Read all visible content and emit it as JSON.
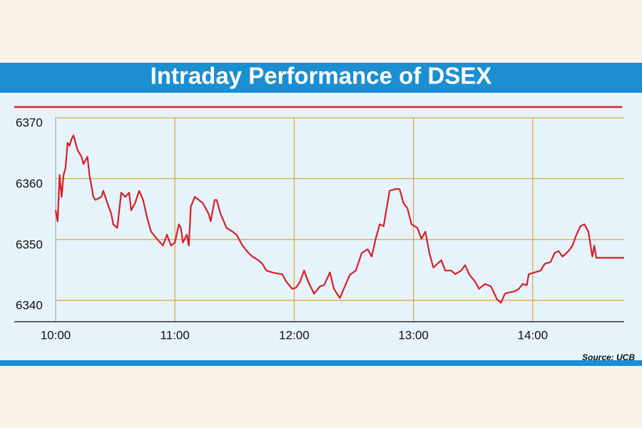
{
  "chart_data": {
    "type": "line",
    "title": "Intraday Performance of DSEX",
    "source": "Source: UCB",
    "x": [
      "10:00",
      "10:01",
      "10:02",
      "10:03",
      "10:04",
      "10:05",
      "10:06",
      "10:07",
      "10:08",
      "10:09",
      "10:11",
      "10:13",
      "10:14",
      "10:16",
      "10:17",
      "10:19",
      "10:20",
      "10:23",
      "10:24",
      "10:26",
      "10:28",
      "10:29",
      "10:31",
      "10:33",
      "10:35",
      "10:37",
      "10:38",
      "10:40",
      "10:42",
      "10:44",
      "10:46",
      "10:48",
      "10:51",
      "10:54",
      "10:56",
      "10:58",
      "11:00",
      "11:02",
      "11:03",
      "11:04",
      "11:06",
      "11:07",
      "11:08",
      "11:10",
      "11:12",
      "11:14",
      "11:17",
      "11:18",
      "11:20",
      "11:21",
      "11:23",
      "11:26",
      "11:29",
      "11:31",
      "11:34",
      "11:37",
      "11:39",
      "11:42",
      "11:44",
      "11:46",
      "11:50",
      "11:54",
      "11:56",
      "11:59",
      "12:01",
      "12:03",
      "12:05",
      "12:07",
      "12:10",
      "12:13",
      "12:15",
      "12:18",
      "12:20",
      "12:23",
      "12:26",
      "12:28",
      "12:31",
      "12:34",
      "12:37",
      "12:39",
      "12:41",
      "12:43",
      "12:45",
      "12:48",
      "12:51",
      "12:53",
      "12:55",
      "12:57",
      "12:59",
      "13:02",
      "13:04",
      "13:06",
      "13:08",
      "13:10",
      "13:12",
      "13:14",
      "13:16",
      "13:19",
      "13:21",
      "13:24",
      "13:26",
      "13:28",
      "13:31",
      "13:33",
      "13:36",
      "13:39",
      "13:42",
      "13:44",
      "13:46",
      "13:48",
      "13:51",
      "13:53",
      "13:55",
      "13:57",
      "13:58",
      "14:01",
      "14:04",
      "14:06",
      "14:09",
      "14:11",
      "14:13",
      "14:15",
      "14:18",
      "14:20",
      "14:22",
      "14:24",
      "14:26",
      "14:28",
      "14:30",
      "14:31",
      "14:32",
      "14:46"
    ],
    "series": [
      {
        "name": "DSEX",
        "color": "#d81f26",
        "values": [
          6354.8,
          6353,
          6360.6,
          6357,
          6360.6,
          6361.8,
          6365.9,
          6365.4,
          6366.5,
          6367.1,
          6364.7,
          6363.6,
          6362.4,
          6363.6,
          6360.6,
          6357,
          6356.5,
          6357,
          6358,
          6356,
          6354.2,
          6352.5,
          6351.9,
          6357.7,
          6357,
          6357.7,
          6354.8,
          6356,
          6358,
          6356.5,
          6353.6,
          6351.3,
          6350.1,
          6349,
          6350.8,
          6349,
          6349.5,
          6352.5,
          6351.9,
          6349.5,
          6350.8,
          6349,
          6355.4,
          6357,
          6356.5,
          6356,
          6354.2,
          6353,
          6356.5,
          6356.5,
          6354.2,
          6351.9,
          6351.3,
          6350.8,
          6349,
          6347.8,
          6347.2,
          6346.6,
          6346,
          6344.9,
          6344.5,
          6344.3,
          6343.1,
          6341.9,
          6342.1,
          6343.1,
          6344.9,
          6343.1,
          6341.1,
          6342.3,
          6342.5,
          6344.6,
          6341.9,
          6340.4,
          6342.7,
          6344.2,
          6344.9,
          6347.8,
          6348.4,
          6347.2,
          6350.1,
          6352.5,
          6352.2,
          6358,
          6358.3,
          6358.3,
          6356,
          6355.1,
          6352.5,
          6351.9,
          6350.1,
          6351.3,
          6347.8,
          6345.4,
          6346,
          6346.6,
          6344.9,
          6344.9,
          6344.3,
          6344.9,
          6345.8,
          6344.3,
          6343.1,
          6341.9,
          6342.7,
          6342.3,
          6340.2,
          6339.6,
          6341.1,
          6341.3,
          6341.5,
          6341.9,
          6342.7,
          6342.5,
          6344.3,
          6344.6,
          6344.9,
          6346,
          6346.3,
          6347.8,
          6348.1,
          6347.2,
          6348.1,
          6349,
          6350.8,
          6352.2,
          6352.5,
          6351.3,
          6347.2,
          6349,
          6347,
          6347
        ]
      }
    ],
    "xlim": [
      "10:00",
      "14:46"
    ],
    "xticks": [
      "10:00",
      "11:00",
      "12:00",
      "13:00",
      "14:00"
    ],
    "ylim": [
      6336.5,
      6372
    ],
    "yticks": [
      6340,
      6350,
      6360,
      6370
    ],
    "grid": true
  }
}
